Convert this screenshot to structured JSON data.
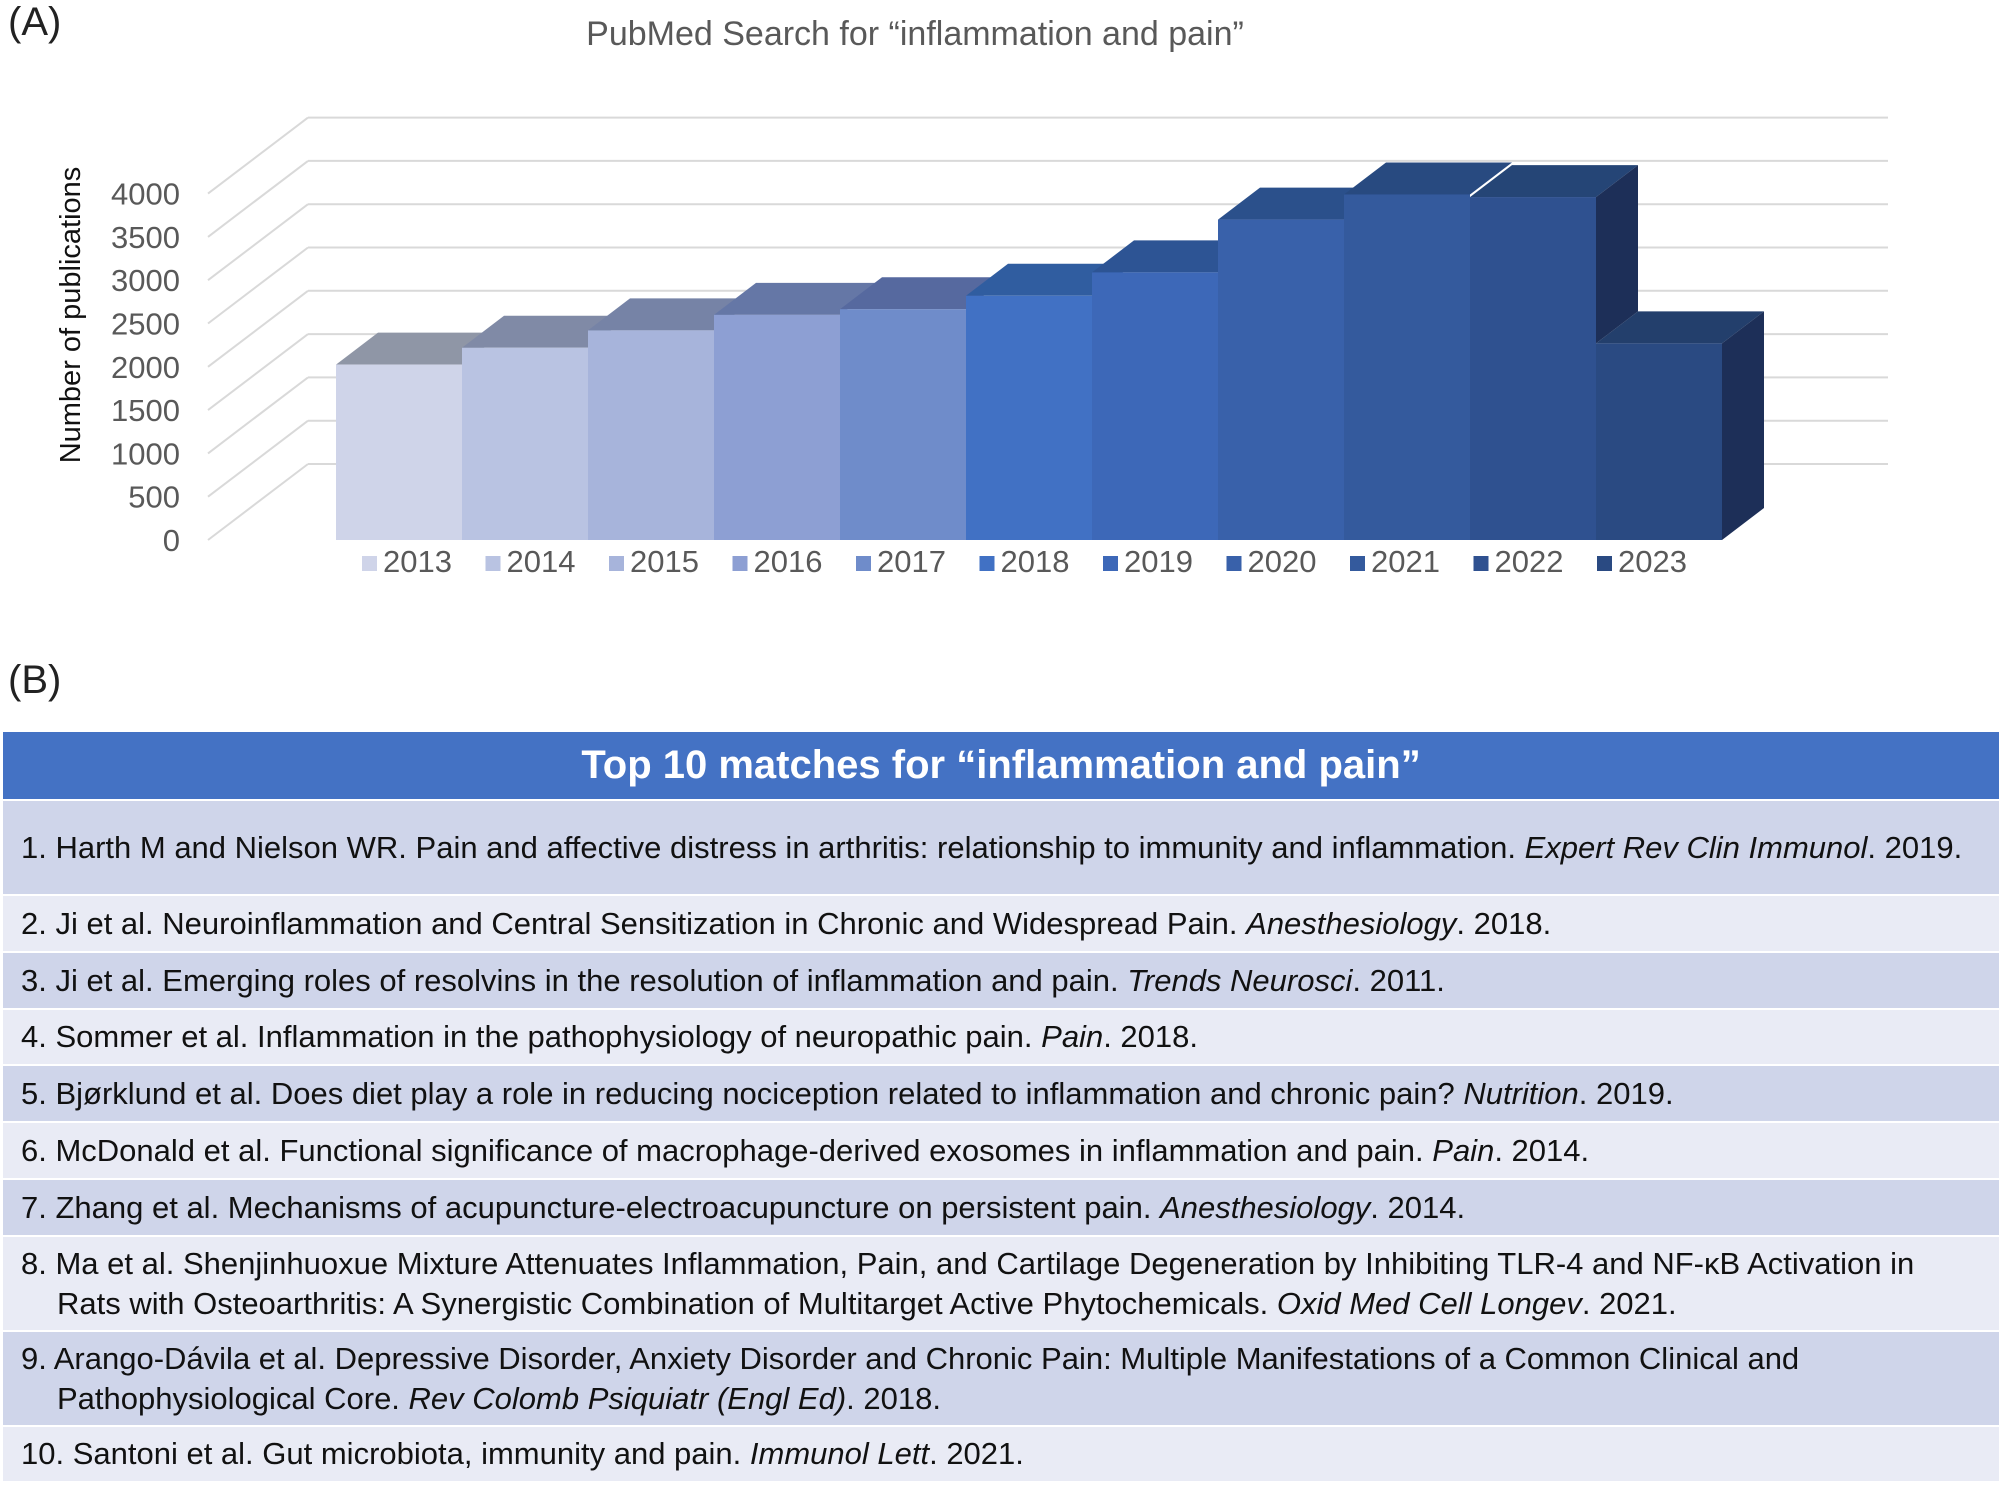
{
  "panel_labels": {
    "a": "(A)",
    "b": "(B)"
  },
  "chart_data": {
    "type": "bar",
    "style": "3d-column",
    "title": "PubMed Search for “inflammation and pain”",
    "xlabel": "",
    "ylabel": "Number of publications",
    "ylim": [
      0,
      4500
    ],
    "yticks": [
      0,
      500,
      1000,
      1500,
      2000,
      2500,
      3000,
      3500,
      4000
    ],
    "grid": true,
    "legend_position": "bottom",
    "categories": [
      "2013",
      "2014",
      "2015",
      "2016",
      "2017",
      "2018",
      "2019",
      "2020",
      "2021",
      "2022",
      "2023"
    ],
    "values": [
      2025,
      2220,
      2420,
      2600,
      2665,
      2820,
      3090,
      3700,
      3990,
      3960,
      2270
    ],
    "front_colors": [
      "#cfd4e9",
      "#b9c3e2",
      "#a7b4db",
      "#8d9fd3",
      "#6f8cca",
      "#4171c4",
      "#3d68b8",
      "#3961aa",
      "#345a9d",
      "#2f5190",
      "#2a4a82"
    ],
    "top_colors": [
      "#8f96a6",
      "#808aa6",
      "#7683a6",
      "#6577a6",
      "#56699f",
      "#305da0",
      "#2d5494",
      "#2b508b",
      "#284a80",
      "#254576",
      "#233f6c"
    ],
    "side_color": "#1d2f58"
  },
  "table": {
    "header": "Top 10 matches for “inflammation and pain”",
    "rows": [
      {
        "pre": "1. Harth M and Nielson WR. Pain and affective distress in arthritis: relationship to immunity and inflammation. ",
        "journal": "Expert Rev Clin Immunol",
        "post": ". 2019."
      },
      {
        "pre": "2. Ji et al. Neuroinflammation and Central Sensitization in Chronic and Widespread Pain. ",
        "journal": "Anesthesiology",
        "post": ". 2018."
      },
      {
        "pre": "3. Ji et al. Emerging roles of resolvins in the resolution of inflammation and pain. ",
        "journal": "Trends Neurosci",
        "post": ". 2011."
      },
      {
        "pre": "4. Sommer et al. Inflammation in the pathophysiology of neuropathic pain. ",
        "journal": "Pain",
        "post": ". 2018."
      },
      {
        "pre": "5. Bjørklund et al. Does diet play a role in reducing nociception related to inflammation and chronic pain? ",
        "journal": "Nutrition",
        "post": ". 2019."
      },
      {
        "pre": "6. McDonald et al. Functional significance of macrophage-derived exosomes in inflammation and pain. ",
        "journal": "Pain",
        "post": ". 2014."
      },
      {
        "pre": "7. Zhang et al. Mechanisms of acupuncture-electroacupuncture on persistent pain. ",
        "journal": "Anesthesiology",
        "post": ". 2014."
      },
      {
        "pre": "8. Ma et al. Shenjinhuoxue Mixture Attenuates Inflammation, Pain, and Cartilage Degeneration by Inhibiting TLR-4 and NF-κB Activation in Rats with Osteoarthritis: A Synergistic Combination of Multitarget Active Phytochemicals. ",
        "journal": "Oxid Med Cell Longev",
        "post": ". 2021."
      },
      {
        "pre": "9. Arango-Dávila et al. Depressive Disorder, Anxiety Disorder and Chronic Pain: Multiple Manifestations of a Common Clinical and Pathophysiological Core. ",
        "journal": "Rev Colomb Psiquiatr (Engl Ed)",
        "post": ". 2018."
      },
      {
        "pre": "10. Santoni et al. Gut microbiota, immunity and pain. ",
        "journal": "Immunol Lett",
        "post": ". 2021."
      }
    ]
  }
}
